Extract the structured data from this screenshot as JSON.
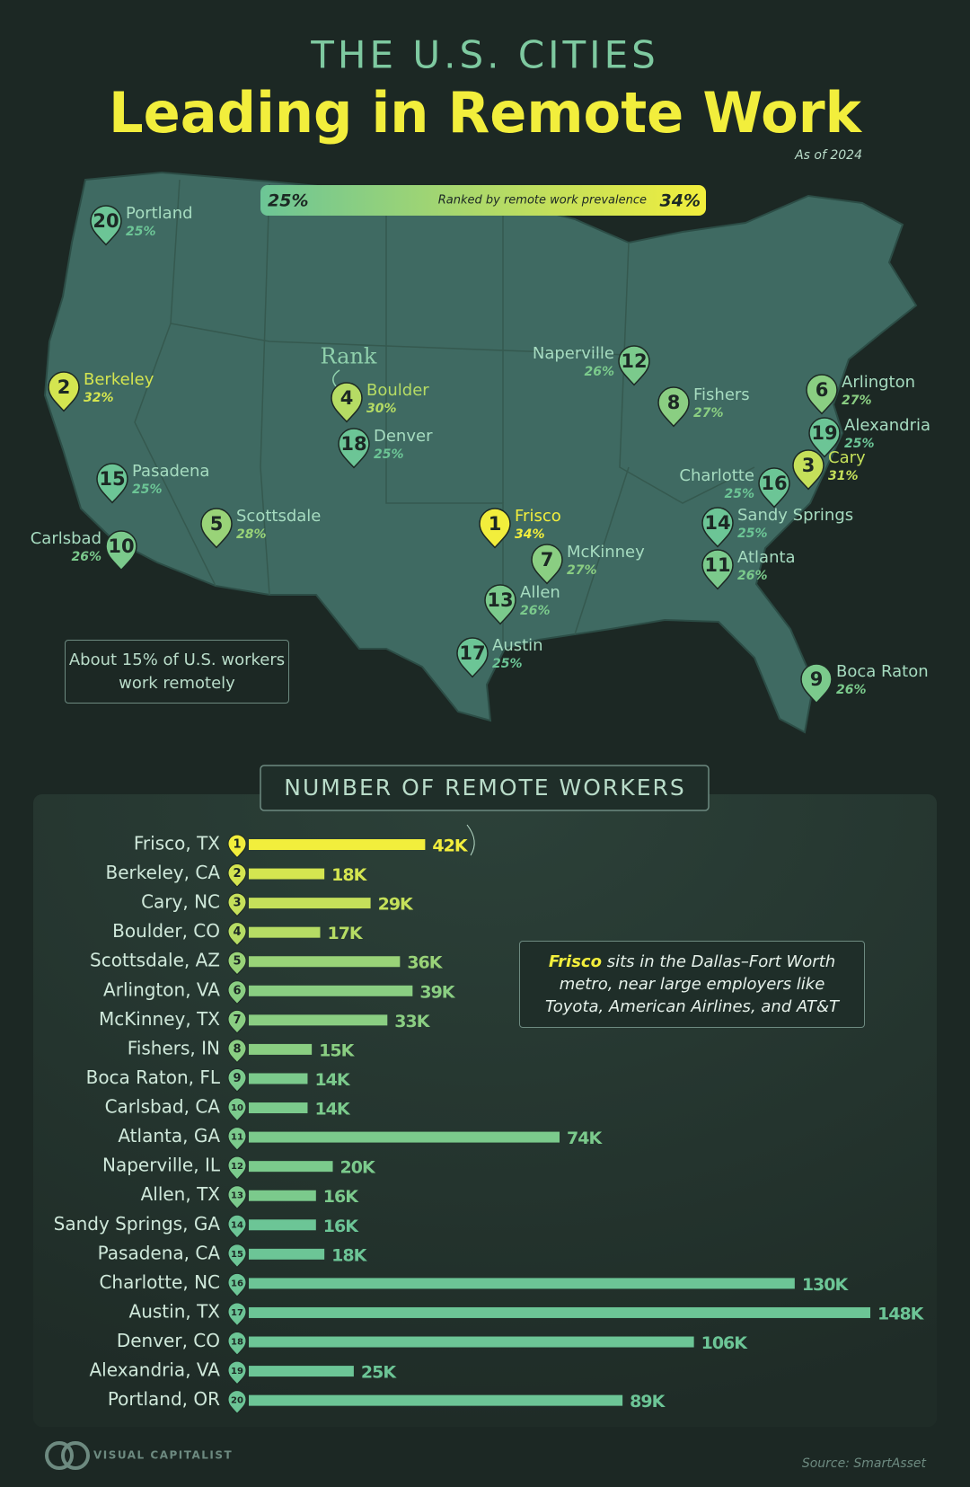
{
  "header": {
    "kicker": "THE U.S. CITIES",
    "title": "Leading in Remote Work",
    "date": "As of 2024"
  },
  "map": {
    "legend": {
      "min": {
        "value": 25,
        "label": "25%"
      },
      "max": {
        "value": 34,
        "label": "34%"
      },
      "caption": "Ranked by remote work prevalence",
      "colors": [
        "#6cc596",
        "#f2ee3c"
      ]
    },
    "rank_label": "Rank",
    "note": "About 15% of U.S. workers work remotely",
    "markers": [
      {
        "rank": 1,
        "name": "Frisco",
        "share": 34,
        "share_label": "34%"
      },
      {
        "rank": 2,
        "name": "Berkeley",
        "share": 32,
        "share_label": "32%"
      },
      {
        "rank": 3,
        "name": "Cary",
        "share": 31,
        "share_label": "31%"
      },
      {
        "rank": 4,
        "name": "Boulder",
        "share": 30,
        "share_label": "30%"
      },
      {
        "rank": 5,
        "name": "Scottsdale",
        "share": 28,
        "share_label": "28%"
      },
      {
        "rank": 6,
        "name": "Arlington",
        "share": 27,
        "share_label": "27%"
      },
      {
        "rank": 7,
        "name": "McKinney",
        "share": 27,
        "share_label": "27%"
      },
      {
        "rank": 8,
        "name": "Fishers",
        "share": 27,
        "share_label": "27%"
      },
      {
        "rank": 9,
        "name": "Boca Raton",
        "share": 26,
        "share_label": "26%"
      },
      {
        "rank": 10,
        "name": "Carlsbad",
        "share": 26,
        "share_label": "26%"
      },
      {
        "rank": 11,
        "name": "Atlanta",
        "share": 26,
        "share_label": "26%"
      },
      {
        "rank": 12,
        "name": "Naperville",
        "share": 26,
        "share_label": "26%"
      },
      {
        "rank": 13,
        "name": "Allen",
        "share": 26,
        "share_label": "26%"
      },
      {
        "rank": 14,
        "name": "Sandy Springs",
        "share": 25,
        "share_label": "25%"
      },
      {
        "rank": 15,
        "name": "Pasadena",
        "share": 25,
        "share_label": "25%"
      },
      {
        "rank": 16,
        "name": "Charlotte",
        "share": 25,
        "share_label": "25%"
      },
      {
        "rank": 17,
        "name": "Austin",
        "share": 25,
        "share_label": "25%"
      },
      {
        "rank": 18,
        "name": "Denver",
        "share": 25,
        "share_label": "25%"
      },
      {
        "rank": 19,
        "name": "Alexandria",
        "share": 25,
        "share_label": "25%"
      },
      {
        "rank": 20,
        "name": "Portland",
        "share": 25,
        "share_label": "25%"
      }
    ]
  },
  "chart_data": {
    "type": "bar",
    "orientation": "horizontal",
    "title": "NUMBER OF REMOTE WORKERS",
    "categories": [
      "Frisco, TX",
      "Berkeley, CA",
      "Cary, NC",
      "Boulder, CO",
      "Scottsdale, AZ",
      "Arlington, VA",
      "McKinney, TX",
      "Fishers, IN",
      "Boca Raton, FL",
      "Carlsbad, CA",
      "Atlanta, GA",
      "Naperville, IL",
      "Allen, TX",
      "Sandy Springs, GA",
      "Pasadena, CA",
      "Charlotte, NC",
      "Austin, TX",
      "Denver, CO",
      "Alexandria, VA",
      "Portland, OR"
    ],
    "ranks": [
      1,
      2,
      3,
      4,
      5,
      6,
      7,
      8,
      9,
      10,
      11,
      12,
      13,
      14,
      15,
      16,
      17,
      18,
      19,
      20
    ],
    "values": [
      42000,
      18000,
      29000,
      17000,
      36000,
      39000,
      33000,
      15000,
      14000,
      14000,
      74000,
      20000,
      16000,
      16000,
      18000,
      130000,
      148000,
      106000,
      25000,
      89000
    ],
    "value_labels": [
      "42K",
      "18K",
      "29K",
      "17K",
      "36K",
      "39K",
      "33K",
      "15K",
      "14K",
      "14K",
      "74K",
      "20K",
      "16K",
      "16K",
      "18K",
      "130K",
      "148K",
      "106K",
      "25K",
      "89K"
    ],
    "annotation": {
      "lead": "Frisco",
      "text": "sits in the Dallas–Fort Worth metro, near large employers like Toyota, American Airlines, and AT&T"
    }
  },
  "footer": {
    "brand": "VISUAL CAPITALIST",
    "source": "Source: SmartAsset"
  }
}
